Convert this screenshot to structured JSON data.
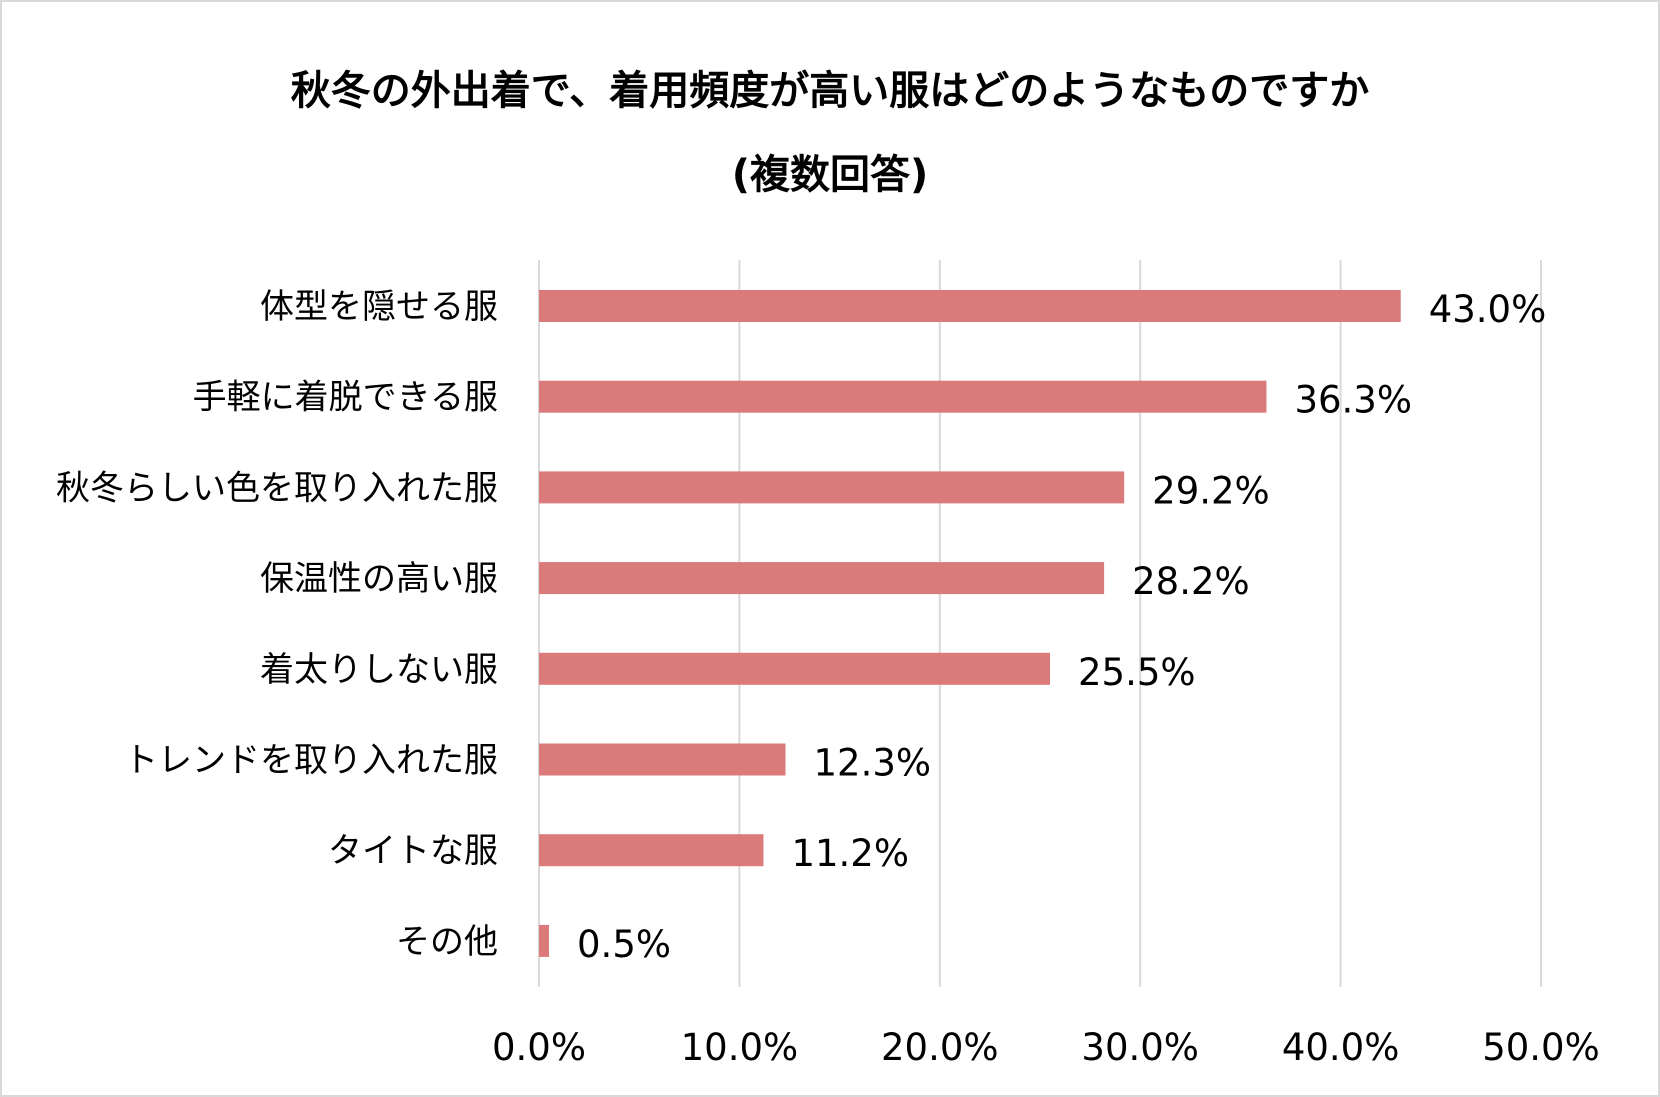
{
  "chart_data": {
    "type": "bar",
    "orientation": "horizontal",
    "title": "秋冬の外出着で、着用頻度が高い服はどのようなものですか",
    "subtitle": "(複数回答)",
    "categories": [
      "体型を隠せる服",
      "手軽に着脱できる服",
      "秋冬らしい色を取り入れた服",
      "保温性の高い服",
      "着太りしない服",
      "トレンドを取り入れた服",
      "タイトな服",
      "その他"
    ],
    "values": [
      43.0,
      36.3,
      29.2,
      28.2,
      25.5,
      12.3,
      11.2,
      0.5
    ],
    "value_labels": [
      "43.0%",
      "36.3%",
      "29.2%",
      "28.2%",
      "25.5%",
      "12.3%",
      "11.2%",
      "0.5%"
    ],
    "xlim": [
      0,
      50
    ],
    "xticks": [
      0,
      10,
      20,
      30,
      40,
      50
    ],
    "xtick_labels": [
      "0.0%",
      "10.0%",
      "20.0%",
      "30.0%",
      "40.0%",
      "50.0%"
    ],
    "xlabel": "",
    "ylabel": "",
    "grid": "vertical",
    "legend": "none",
    "colors": {
      "bar": "#db7a7a",
      "grid": "#d9d9d9",
      "text": "#000000"
    }
  }
}
